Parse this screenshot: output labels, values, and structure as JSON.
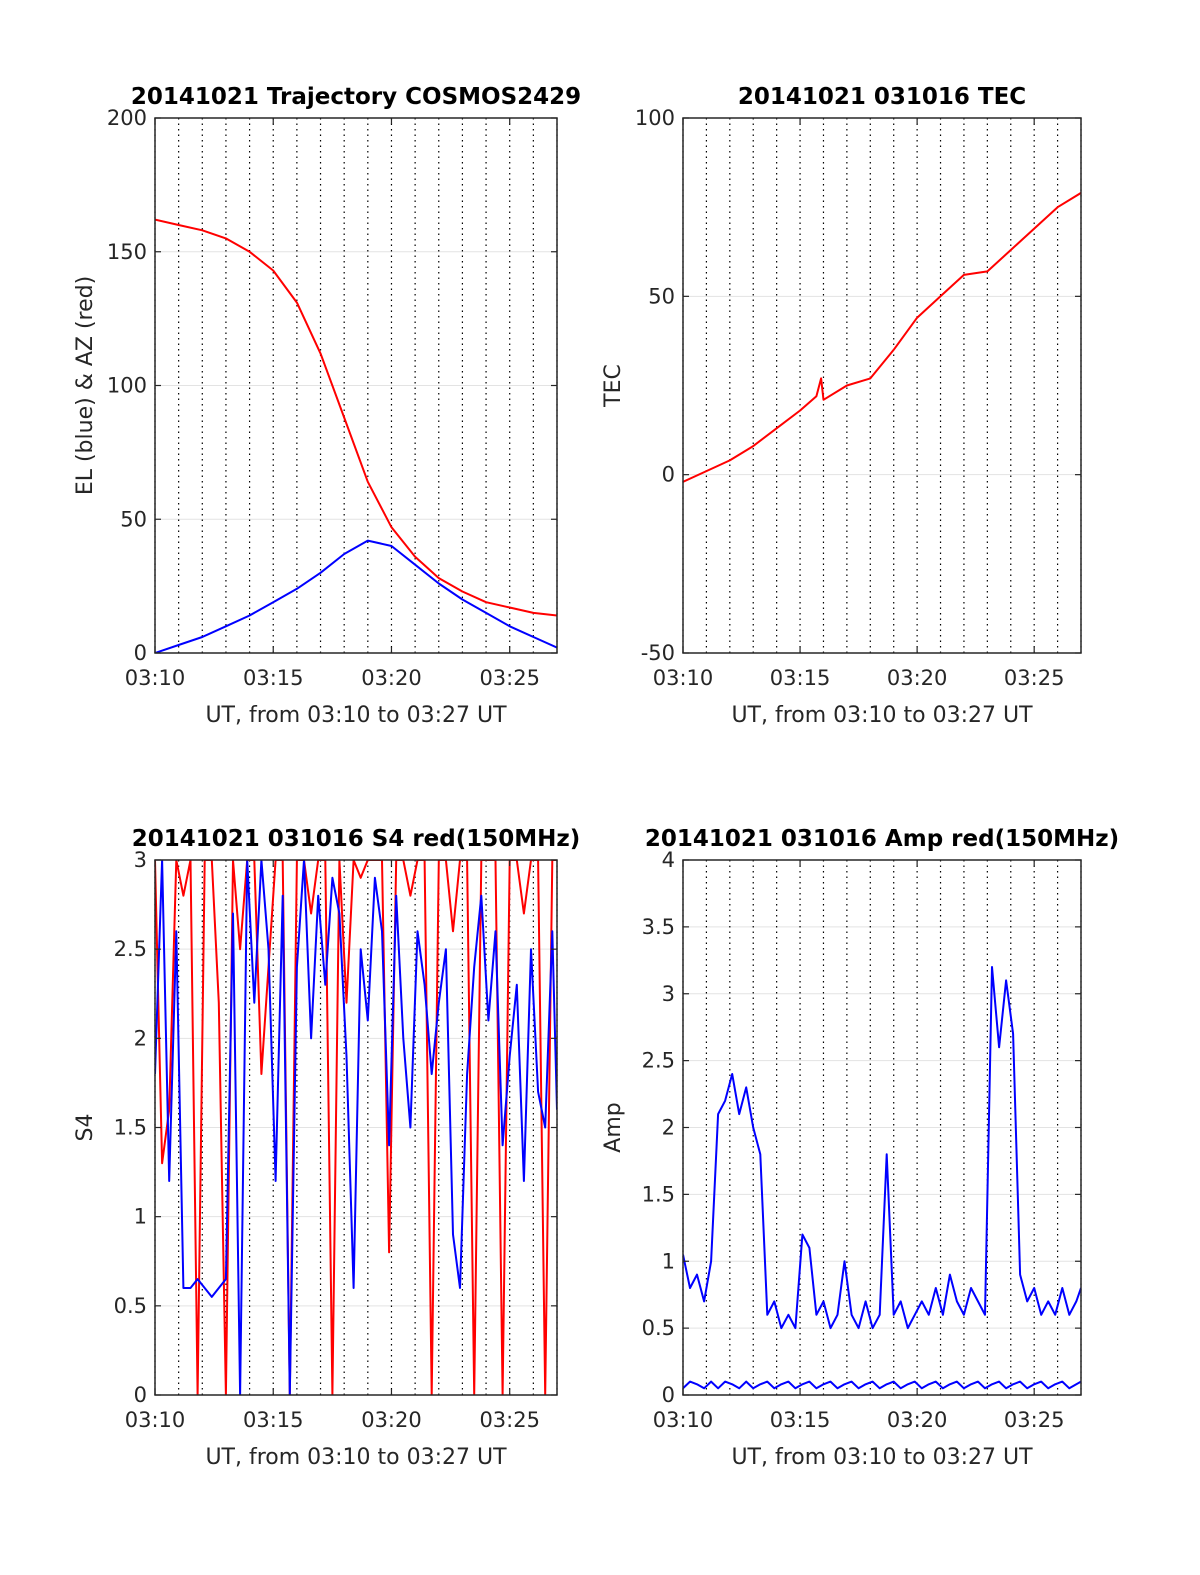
{
  "chart_data": [
    {
      "type": "line",
      "title": "20141021 Trajectory COSMOS2429",
      "xlabel": "UT, from 03:10 to 03:27 UT",
      "ylabel": "EL (blue) & AZ (red)",
      "x_range_min": [
        0,
        17
      ],
      "x_ticks": [
        "03:10",
        "03:15",
        "03:20",
        "03:25"
      ],
      "x_tick_min": [
        0,
        5,
        10,
        15
      ],
      "ylim": [
        0,
        200
      ],
      "y_ticks": [
        0,
        50,
        100,
        150,
        200
      ],
      "grid": true,
      "x_min": [
        0,
        1,
        2,
        3,
        4,
        5,
        6,
        7,
        8,
        9,
        10,
        11,
        12,
        13,
        14,
        15,
        16,
        17
      ],
      "series": [
        {
          "values": [
            162,
            160,
            158,
            155,
            150,
            143,
            131,
            112,
            88,
            64,
            47,
            36,
            28,
            23,
            19,
            17,
            15,
            14
          ],
          "color": "#ff0000"
        },
        {
          "values": [
            0,
            3,
            6,
            10,
            14,
            19,
            24,
            30,
            37,
            42,
            40,
            33,
            26,
            20,
            15,
            10,
            6,
            2
          ],
          "color": "#0000ff"
        }
      ]
    },
    {
      "type": "line",
      "title": "20141021 031016 TEC",
      "xlabel": "UT, from 03:10 to 03:27 UT",
      "ylabel": "TEC",
      "x_range_min": [
        0,
        17
      ],
      "x_ticks": [
        "03:10",
        "03:15",
        "03:20",
        "03:25"
      ],
      "x_tick_min": [
        0,
        5,
        10,
        15
      ],
      "ylim": [
        -50,
        100
      ],
      "y_ticks": [
        -50,
        0,
        50,
        100
      ],
      "grid": true,
      "x_min": [
        0,
        1,
        2,
        3,
        4,
        5,
        5.7,
        5.9,
        6,
        7,
        8,
        9,
        10,
        11,
        12,
        13,
        14,
        15,
        16,
        17
      ],
      "series": [
        {
          "values": [
            -2,
            1,
            4,
            8,
            13,
            18,
            22,
            27,
            21,
            25,
            27,
            35,
            44,
            50,
            56,
            57,
            63,
            69,
            75,
            79
          ],
          "color": "#ff0000"
        }
      ]
    },
    {
      "type": "line",
      "title": "20141021 031016 S4 red(150MHz)",
      "xlabel": "UT, from 03:10 to 03:27 UT",
      "ylabel": "S4",
      "x_range_min": [
        0,
        17
      ],
      "x_ticks": [
        "03:10",
        "03:15",
        "03:20",
        "03:25"
      ],
      "x_tick_min": [
        0,
        5,
        10,
        15
      ],
      "ylim": [
        0,
        3
      ],
      "y_ticks": [
        0,
        0.5,
        1,
        1.5,
        2,
        2.5,
        3
      ],
      "grid": true,
      "x_min": [
        0,
        0.3,
        0.6,
        0.9,
        1.2,
        1.5,
        1.8,
        2.1,
        2.4,
        2.7,
        3,
        3.3,
        3.6,
        3.9,
        4.2,
        4.5,
        4.8,
        5.1,
        5.4,
        5.7,
        6,
        6.3,
        6.6,
        6.9,
        7.2,
        7.5,
        7.8,
        8.1,
        8.4,
        8.7,
        9,
        9.3,
        9.6,
        9.9,
        10.2,
        10.5,
        10.8,
        11.1,
        11.4,
        11.7,
        12,
        12.3,
        12.6,
        12.9,
        13.2,
        13.5,
        13.8,
        14.1,
        14.4,
        14.7,
        15,
        15.3,
        15.6,
        15.9,
        16.2,
        16.5,
        16.8,
        17
      ],
      "series": [
        {
          "color": "#ff0000",
          "values": [
            3,
            1.3,
            1.6,
            3,
            2.8,
            3,
            0,
            3,
            3,
            2.2,
            0,
            3,
            2.5,
            3,
            3,
            1.8,
            2.4,
            3,
            3,
            0,
            3,
            3,
            2.7,
            3,
            3,
            0,
            3,
            2.2,
            3,
            2.9,
            3,
            3,
            3,
            0.8,
            3,
            3,
            2.8,
            3,
            3,
            0,
            3,
            3,
            2.6,
            3,
            3,
            0,
            3,
            3,
            3,
            0,
            3,
            3,
            2.7,
            3,
            3,
            0,
            3,
            3
          ]
        },
        {
          "color": "#0000ff",
          "values": [
            1.8,
            3,
            1.2,
            2.6,
            0.6,
            0.6,
            0.65,
            0.6,
            0.55,
            0.6,
            0.65,
            2.7,
            0.0,
            3,
            2.2,
            3,
            2.5,
            1.2,
            2.8,
            0.0,
            2.4,
            3,
            2.0,
            2.8,
            2.3,
            2.9,
            2.7,
            1.9,
            0.6,
            2.5,
            2.1,
            2.9,
            2.6,
            1.4,
            2.8,
            2.0,
            1.5,
            2.6,
            2.3,
            1.8,
            2.2,
            2.5,
            0.9,
            0.6,
            1.8,
            2.4,
            2.8,
            2.1,
            2.6,
            1.4,
            1.9,
            2.3,
            1.2,
            2.5,
            1.7,
            1.5,
            2.6,
            1.6
          ]
        }
      ]
    },
    {
      "type": "line",
      "title": "20141021 031016 Amp red(150MHz)",
      "xlabel": "UT, from 03:10 to 03:27 UT",
      "ylabel": "Amp",
      "x_range_min": [
        0,
        17
      ],
      "x_ticks": [
        "03:10",
        "03:15",
        "03:20",
        "03:25"
      ],
      "x_tick_min": [
        0,
        5,
        10,
        15
      ],
      "ylim": [
        0,
        4
      ],
      "y_ticks": [
        0,
        0.5,
        1,
        1.5,
        2,
        2.5,
        3,
        3.5,
        4
      ],
      "y_tick_labels": [
        "0",
        "0.5",
        "1",
        "1.5",
        "2",
        "2.5",
        "3",
        "3.5",
        "4"
      ],
      "grid": true,
      "x_min": [
        0,
        0.3,
        0.6,
        0.9,
        1.2,
        1.5,
        1.8,
        2.1,
        2.4,
        2.7,
        3,
        3.3,
        3.6,
        3.9,
        4.2,
        4.5,
        4.8,
        5.1,
        5.4,
        5.7,
        6,
        6.3,
        6.6,
        6.9,
        7.2,
        7.5,
        7.8,
        8.1,
        8.4,
        8.7,
        9,
        9.3,
        9.6,
        9.9,
        10.2,
        10.5,
        10.8,
        11.1,
        11.4,
        11.7,
        12,
        12.3,
        12.6,
        12.9,
        13.2,
        13.5,
        13.8,
        14.1,
        14.4,
        14.7,
        15,
        15.3,
        15.6,
        15.9,
        16.2,
        16.5,
        16.8,
        17
      ],
      "series": [
        {
          "color": "#0000ff",
          "values": [
            1.05,
            0.8,
            0.9,
            0.7,
            1.0,
            2.1,
            2.2,
            2.4,
            2.1,
            2.3,
            2.0,
            1.8,
            0.6,
            0.7,
            0.5,
            0.6,
            0.5,
            1.2,
            1.1,
            0.6,
            0.7,
            0.5,
            0.6,
            1.0,
            0.6,
            0.5,
            0.7,
            0.5,
            0.6,
            1.8,
            0.6,
            0.7,
            0.5,
            0.6,
            0.7,
            0.6,
            0.8,
            0.6,
            0.9,
            0.7,
            0.6,
            0.8,
            0.7,
            0.6,
            3.2,
            2.6,
            3.1,
            2.7,
            0.9,
            0.7,
            0.8,
            0.6,
            0.7,
            0.6,
            0.8,
            0.6,
            0.7,
            0.8
          ]
        },
        {
          "color": "#0000ff",
          "values": [
            0.05,
            0.1,
            0.08,
            0.05,
            0.1,
            0.05,
            0.1,
            0.08,
            0.05,
            0.1,
            0.05,
            0.08,
            0.1,
            0.05,
            0.08,
            0.1,
            0.05,
            0.08,
            0.1,
            0.05,
            0.08,
            0.1,
            0.05,
            0.08,
            0.1,
            0.05,
            0.08,
            0.1,
            0.05,
            0.08,
            0.1,
            0.05,
            0.08,
            0.1,
            0.05,
            0.08,
            0.1,
            0.05,
            0.08,
            0.1,
            0.05,
            0.08,
            0.1,
            0.05,
            0.08,
            0.1,
            0.05,
            0.08,
            0.1,
            0.05,
            0.08,
            0.1,
            0.05,
            0.08,
            0.1,
            0.05,
            0.08,
            0.1
          ]
        }
      ]
    }
  ]
}
